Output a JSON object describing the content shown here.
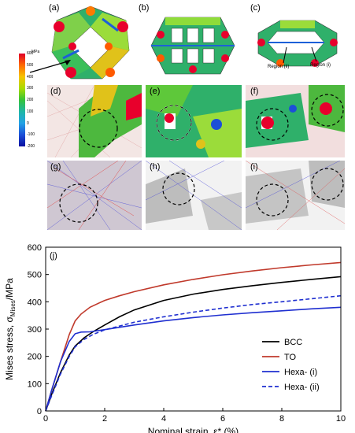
{
  "panels": {
    "a": "(a)",
    "b": "(b)",
    "c": "(c)",
    "d": "(d)",
    "e": "(e)",
    "f": "(f)",
    "g": "(g)",
    "h": "(h)",
    "i": "(i)",
    "j": "(j)"
  },
  "region_labels": {
    "region_ii": "Region (ii)",
    "region_i": "Region (i)"
  },
  "colorbar": {
    "unit": "MPa",
    "ticks": [
      "600",
      "500",
      "400",
      "300",
      "200",
      "100",
      "0",
      "-100",
      "-200"
    ],
    "colors": [
      "#e0002a",
      "#ff6a00",
      "#f6c400",
      "#aadc00",
      "#35c33a",
      "#1eb6a6",
      "#22a2e6",
      "#1c4fd8",
      "#0a10a0"
    ]
  },
  "chart_data": {
    "type": "line",
    "xlabel": "Nominal strain, ε* (%)",
    "ylabel": "Mises stress, σ",
    "ylabel_sub": "Mises",
    "ylabel_unit": "/MPa",
    "xlim": [
      0,
      10
    ],
    "ylim": [
      0,
      600
    ],
    "xticks": [
      "0",
      "2",
      "4",
      "6",
      "8",
      "10"
    ],
    "yticks": [
      "0",
      "100",
      "200",
      "300",
      "400",
      "500",
      "600"
    ],
    "legend_position": "bottom-right",
    "series": [
      {
        "name": "BCC",
        "color": "#000000",
        "dash": false,
        "x": [
          0,
          0.2,
          0.5,
          0.8,
          1.0,
          1.3,
          1.6,
          2.0,
          2.5,
          3.0,
          4.0,
          5.0,
          6.0,
          7.0,
          8.0,
          9.0,
          10.0
        ],
        "y": [
          0,
          60,
          140,
          205,
          238,
          268,
          290,
          315,
          345,
          370,
          405,
          428,
          445,
          459,
          471,
          482,
          492
        ]
      },
      {
        "name": "TO",
        "color": "#c0392b",
        "dash": false,
        "x": [
          0,
          0.2,
          0.5,
          0.8,
          1.0,
          1.2,
          1.5,
          2.0,
          2.5,
          3.0,
          4.0,
          5.0,
          6.0,
          7.0,
          8.0,
          9.0,
          10.0
        ],
        "y": [
          0,
          75,
          180,
          280,
          330,
          355,
          380,
          405,
          422,
          437,
          462,
          482,
          499,
          513,
          525,
          535,
          544
        ]
      },
      {
        "name": "Hexa- (i)",
        "color": "#1f2fd0",
        "dash": false,
        "x": [
          0,
          0.2,
          0.5,
          0.8,
          1.0,
          1.2,
          1.5,
          2.0,
          3.0,
          4.0,
          5.0,
          6.0,
          7.0,
          8.0,
          9.0,
          10.0
        ],
        "y": [
          0,
          75,
          180,
          255,
          283,
          289,
          290,
          298,
          315,
          330,
          342,
          352,
          360,
          367,
          374,
          380
        ]
      },
      {
        "name": "Hexa- (ii)",
        "color": "#1f2fd0",
        "dash": true,
        "x": [
          0,
          0.2,
          0.5,
          0.8,
          1.0,
          1.3,
          1.6,
          2.0,
          3.0,
          4.0,
          5.0,
          6.0,
          7.0,
          8.0,
          9.0,
          10.0
        ],
        "y": [
          0,
          55,
          135,
          200,
          235,
          262,
          280,
          297,
          325,
          345,
          362,
          377,
          390,
          400,
          411,
          422
        ]
      }
    ]
  }
}
